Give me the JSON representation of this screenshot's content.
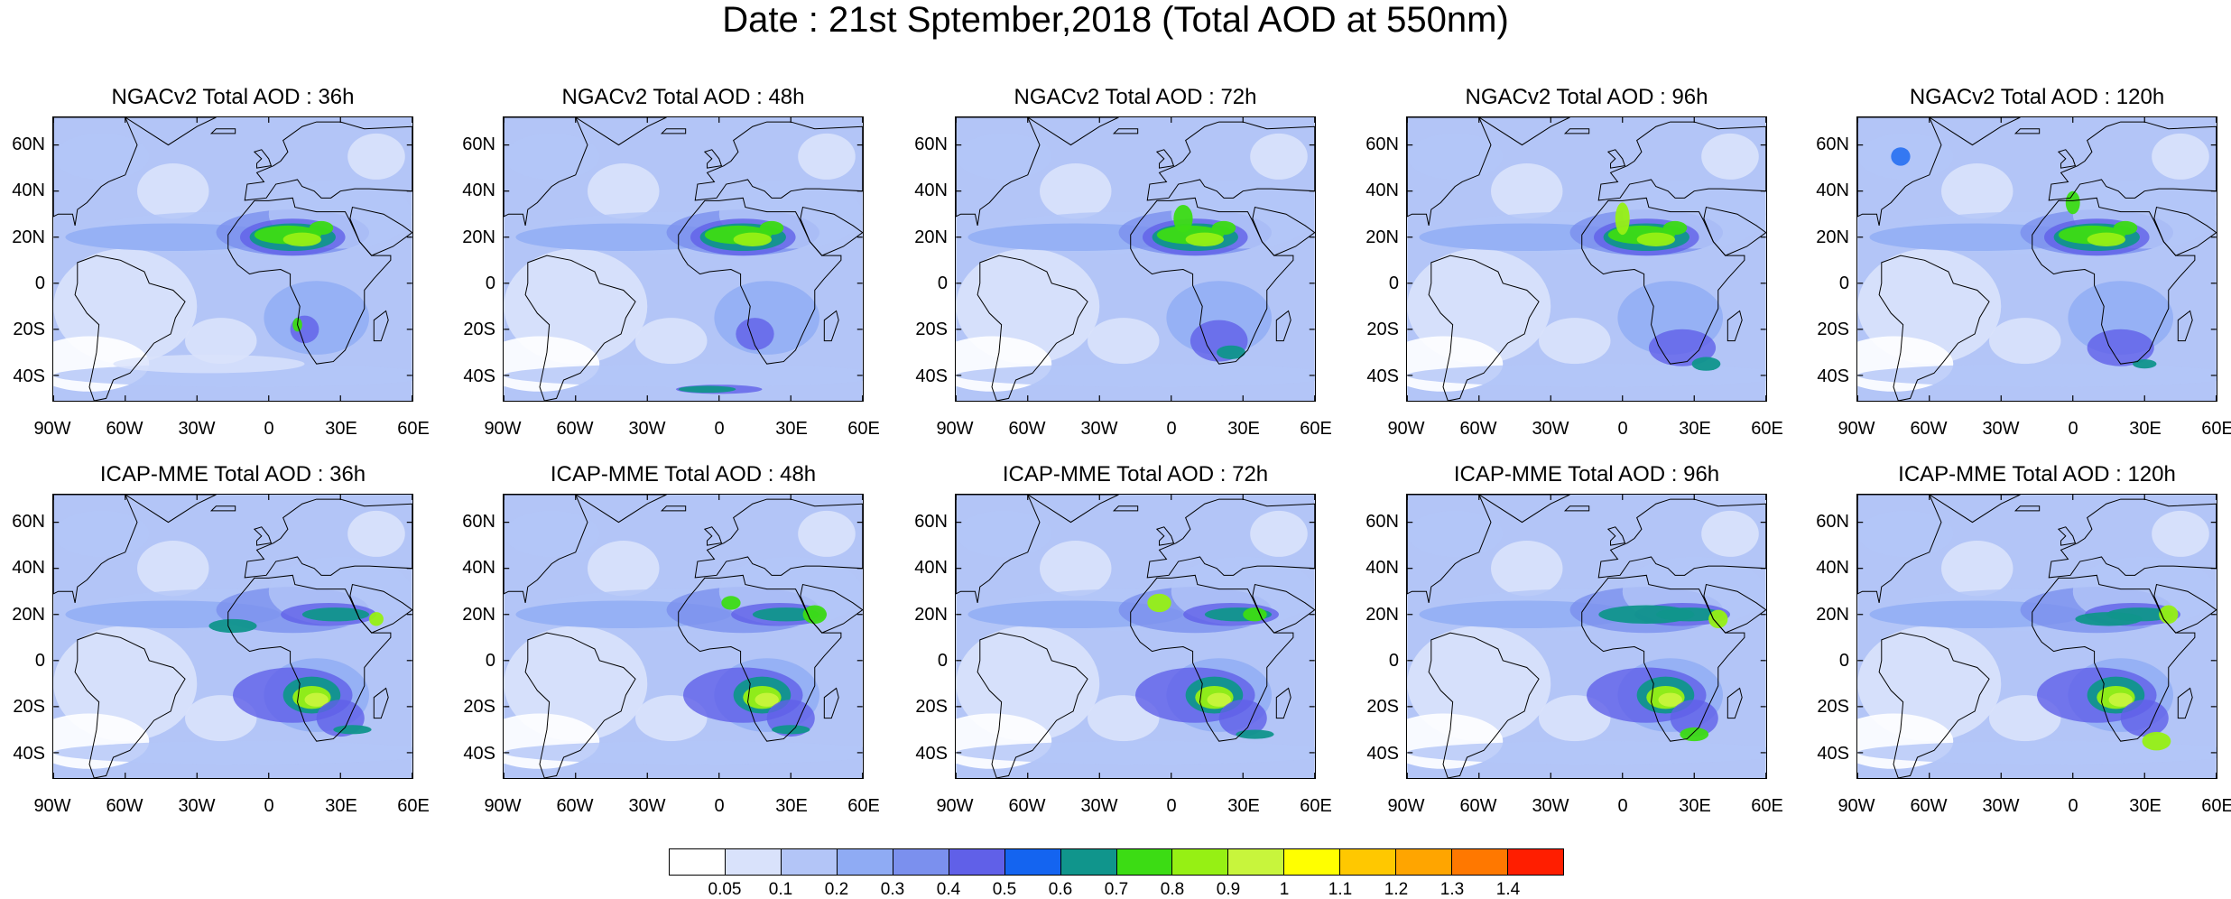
{
  "title": "Date : 21st Sptember,2018 (Total AOD at 550nm)",
  "panels": [
    {
      "title": "NGACv2 Total AOD : 36h",
      "row": 0,
      "col": 0
    },
    {
      "title": "NGACv2 Total AOD : 48h",
      "row": 0,
      "col": 1
    },
    {
      "title": "NGACv2 Total AOD : 72h",
      "row": 0,
      "col": 2
    },
    {
      "title": "NGACv2 Total AOD : 96h",
      "row": 0,
      "col": 3
    },
    {
      "title": "NGACv2 Total AOD : 120h",
      "row": 0,
      "col": 4
    },
    {
      "title": "ICAP-MME Total AOD : 36h",
      "row": 1,
      "col": 0
    },
    {
      "title": "ICAP-MME Total AOD : 48h",
      "row": 1,
      "col": 1
    },
    {
      "title": "ICAP-MME Total AOD : 72h",
      "row": 1,
      "col": 2
    },
    {
      "title": "ICAP-MME Total AOD : 96h",
      "row": 1,
      "col": 3
    },
    {
      "title": "ICAP-MME Total AOD : 120h",
      "row": 1,
      "col": 4
    }
  ],
  "lat_ticks": [
    "60N",
    "40N",
    "20N",
    "0",
    "20S",
    "40S"
  ],
  "lon_ticks": [
    "90W",
    "60W",
    "30W",
    "0",
    "30E",
    "60E"
  ],
  "colorbar": {
    "labels": [
      "0.05",
      "0.1",
      "0.2",
      "0.3",
      "0.4",
      "0.5",
      "0.6",
      "0.7",
      "0.8",
      "0.9",
      "1",
      "1.1",
      "1.2",
      "1.3",
      "1.4"
    ],
    "colors": [
      "#ffffff",
      "#d9e2fb",
      "#b3c5f7",
      "#8fabf4",
      "#7b90ee",
      "#6060e8",
      "#1464f0",
      "#10958c",
      "#3cdc14",
      "#96f014",
      "#c8f53c",
      "#ffff00",
      "#ffc800",
      "#ffa500",
      "#ff7800",
      "#ff1e00"
    ]
  }
}
